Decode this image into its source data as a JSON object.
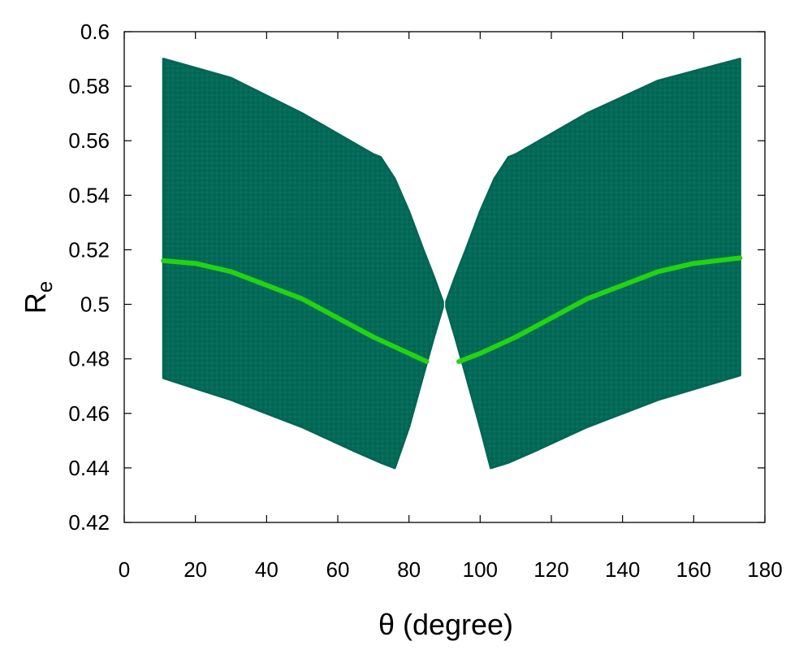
{
  "chart_data": {
    "type": "scatter",
    "title": "",
    "xlabel": "θ (degree)",
    "ylabel_main": "R",
    "ylabel_sub": "e",
    "xlim": [
      0,
      180
    ],
    "ylim": [
      0.42,
      0.6
    ],
    "xticks": [
      0,
      20,
      40,
      60,
      80,
      100,
      120,
      140,
      160,
      180
    ],
    "yticks": [
      0.42,
      0.44,
      0.46,
      0.48,
      0.5,
      0.52,
      0.54,
      0.56,
      0.58,
      0.6
    ],
    "ytick_labels": [
      "0.42",
      "0.44",
      "0.46",
      "0.48",
      "0.5",
      "0.52",
      "0.54",
      "0.56",
      "0.58",
      "0.6"
    ],
    "grid": false,
    "legend": "none",
    "colors": {
      "band": "#036654",
      "curve": "#22d411"
    },
    "series": [
      {
        "role": "band-left",
        "upper": [
          [
            11,
            0.59
          ],
          [
            30,
            0.583
          ],
          [
            50,
            0.57
          ],
          [
            70,
            0.555
          ],
          [
            72,
            0.554
          ],
          [
            76,
            0.546
          ],
          [
            80,
            0.534
          ],
          [
            84,
            0.52
          ],
          [
            87,
            0.51
          ],
          [
            89.5,
            0.501
          ]
        ],
        "lower": [
          [
            11,
            0.473
          ],
          [
            30,
            0.465
          ],
          [
            50,
            0.455
          ],
          [
            65,
            0.446
          ],
          [
            72,
            0.442
          ],
          [
            76,
            0.44
          ],
          [
            80,
            0.455
          ],
          [
            84,
            0.474
          ],
          [
            87,
            0.488
          ],
          [
            89.5,
            0.499
          ]
        ]
      },
      {
        "role": "band-right",
        "upper": [
          [
            90.5,
            0.501
          ],
          [
            93,
            0.51
          ],
          [
            96,
            0.52
          ],
          [
            100,
            0.534
          ],
          [
            104,
            0.546
          ],
          [
            108,
            0.554
          ],
          [
            110,
            0.555
          ],
          [
            130,
            0.57
          ],
          [
            150,
            0.582
          ],
          [
            173,
            0.59
          ]
        ],
        "lower": [
          [
            90.5,
            0.499
          ],
          [
            93,
            0.488
          ],
          [
            96,
            0.474
          ],
          [
            100,
            0.455
          ],
          [
            103,
            0.44
          ],
          [
            108,
            0.442
          ],
          [
            115,
            0.446
          ],
          [
            130,
            0.455
          ],
          [
            150,
            0.465
          ],
          [
            173,
            0.474
          ]
        ]
      },
      {
        "role": "curve-left",
        "points": [
          [
            11,
            0.516
          ],
          [
            20,
            0.515
          ],
          [
            30,
            0.512
          ],
          [
            40,
            0.507
          ],
          [
            50,
            0.502
          ],
          [
            60,
            0.495
          ],
          [
            70,
            0.488
          ],
          [
            80,
            0.482
          ],
          [
            85,
            0.479
          ]
        ]
      },
      {
        "role": "curve-right",
        "points": [
          [
            94,
            0.479
          ],
          [
            100,
            0.482
          ],
          [
            110,
            0.488
          ],
          [
            120,
            0.495
          ],
          [
            130,
            0.502
          ],
          [
            140,
            0.507
          ],
          [
            150,
            0.512
          ],
          [
            160,
            0.515
          ],
          [
            173,
            0.517
          ]
        ]
      }
    ]
  }
}
